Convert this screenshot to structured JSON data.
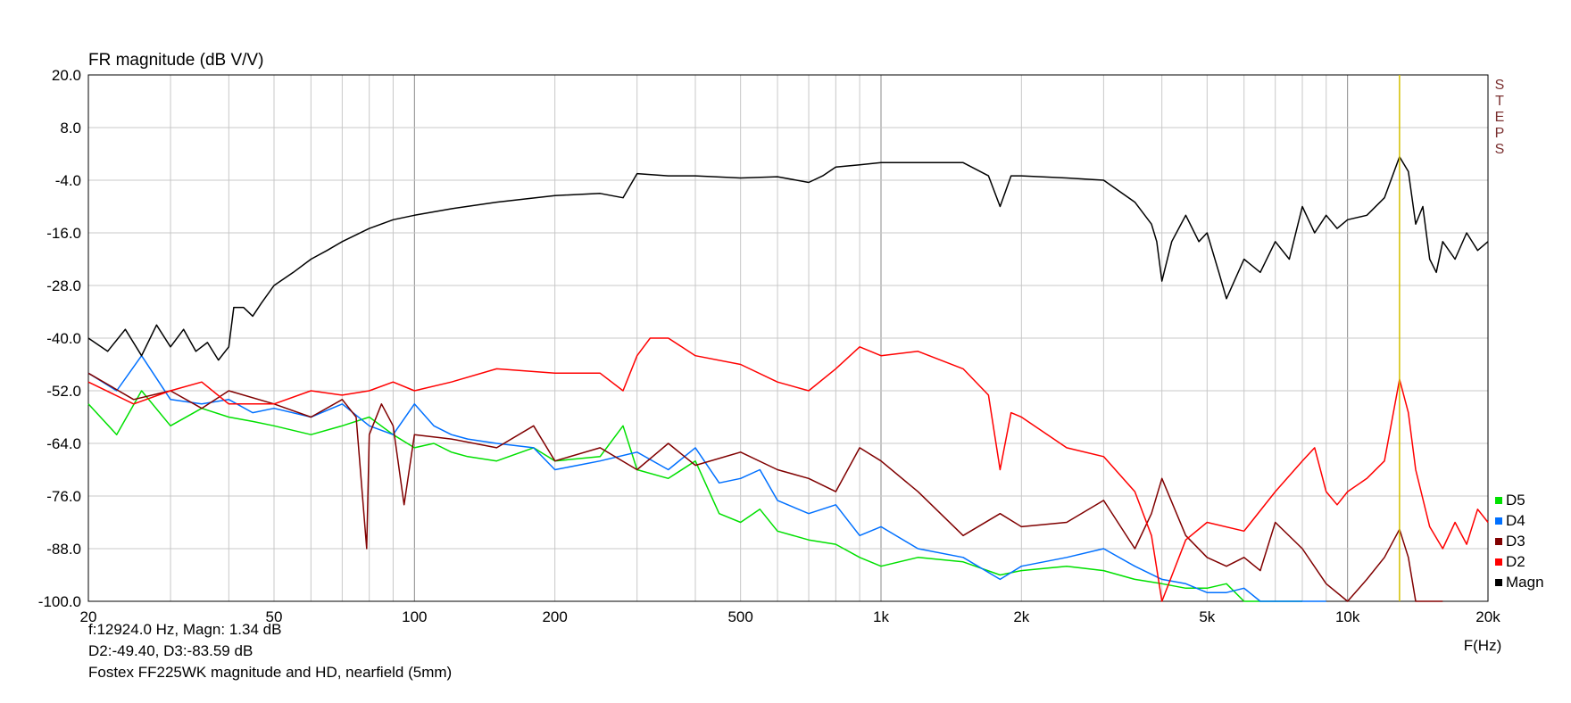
{
  "chart_data": {
    "type": "line",
    "title": "FR magnitude (dB V/V)",
    "xlabel": "F(Hz)",
    "x_scale": "log",
    "xlim": [
      20,
      20000
    ],
    "ylim": [
      -100,
      20
    ],
    "grid": true,
    "x_ticks": [
      "20",
      "50",
      "100",
      "200",
      "500",
      "1k",
      "2k",
      "5k",
      "10k",
      "20k"
    ],
    "y_ticks": [
      "20.0",
      "8.0",
      "-4.0",
      "-16.0",
      "-28.0",
      "-40.0",
      "-52.0",
      "-64.0",
      "-76.0",
      "-88.0",
      "-100.0"
    ],
    "side_label": "STEPS",
    "legend_position": "right-bottom",
    "legend": [
      {
        "name": "D5",
        "color": "#00e000"
      },
      {
        "name": "D4",
        "color": "#0070ff"
      },
      {
        "name": "D3",
        "color": "#800000"
      },
      {
        "name": "D2",
        "color": "#ff0000"
      },
      {
        "name": "Magn",
        "color": "#000000"
      }
    ],
    "cursor": {
      "x": 12924
    },
    "readout": [
      "f:12924.0 Hz, Magn: 1.34 dB",
      "D2:-49.40, D3:-83.59 dB"
    ],
    "caption": "Fostex FF225WK magnitude and HD, nearfield (5mm)",
    "series": [
      {
        "name": "Magn",
        "color": "#000000",
        "x": [
          20,
          22,
          24,
          26,
          28,
          30,
          32,
          34,
          36,
          38,
          40,
          41,
          43,
          45,
          47,
          50,
          55,
          60,
          65,
          70,
          80,
          90,
          100,
          120,
          150,
          200,
          250,
          280,
          300,
          350,
          400,
          500,
          600,
          700,
          750,
          800,
          900,
          1000,
          1200,
          1500,
          1700,
          1800,
          1900,
          2000,
          2500,
          3000,
          3500,
          3800,
          3900,
          4000,
          4200,
          4500,
          4800,
          5000,
          5300,
          5500,
          6000,
          6500,
          7000,
          7500,
          8000,
          8500,
          9000,
          9500,
          10000,
          11000,
          12000,
          12924,
          13500,
          14000,
          14500,
          15000,
          15500,
          16000,
          17000,
          18000,
          19000,
          20000
        ],
        "y": [
          -40,
          -43,
          -38,
          -44,
          -37,
          -42,
          -38,
          -43,
          -41,
          -45,
          -42,
          -33,
          -33,
          -35,
          -32,
          -28,
          -25,
          -22,
          -20,
          -18,
          -15,
          -13,
          -12,
          -10.5,
          -9,
          -7.5,
          -7,
          -8,
          -2.5,
          -3,
          -3,
          -3.5,
          -3.2,
          -4.5,
          -3,
          -1,
          -0.5,
          0,
          0,
          0,
          -3,
          -10,
          -3,
          -3,
          -3.5,
          -4,
          -9,
          -14,
          -18,
          -27,
          -18,
          -12,
          -18,
          -16,
          -25,
          -31,
          -22,
          -25,
          -18,
          -22,
          -10,
          -16,
          -12,
          -15,
          -13,
          -12,
          -8,
          1.34,
          -2,
          -14,
          -10,
          -22,
          -25,
          -18,
          -22,
          -16,
          -20,
          -18
        ]
      },
      {
        "name": "D2",
        "color": "#ff0000",
        "x": [
          20,
          25,
          30,
          35,
          40,
          50,
          60,
          70,
          80,
          90,
          100,
          120,
          150,
          200,
          250,
          280,
          300,
          320,
          350,
          400,
          500,
          600,
          700,
          800,
          900,
          1000,
          1200,
          1500,
          1700,
          1800,
          1900,
          2000,
          2500,
          3000,
          3500,
          3800,
          4000,
          4500,
          5000,
          6000,
          7000,
          8000,
          8500,
          9000,
          9500,
          10000,
          11000,
          12000,
          12924,
          13500,
          14000,
          15000,
          16000,
          17000,
          18000,
          19000,
          20000
        ],
        "y": [
          -50,
          -55,
          -52,
          -50,
          -55,
          -55,
          -52,
          -53,
          -52,
          -50,
          -52,
          -50,
          -47,
          -48,
          -48,
          -52,
          -44,
          -40,
          -40,
          -44,
          -46,
          -50,
          -52,
          -47,
          -42,
          -44,
          -43,
          -47,
          -53,
          -70,
          -57,
          -58,
          -65,
          -67,
          -75,
          -85,
          -100,
          -86,
          -82,
          -84,
          -75,
          -68,
          -65,
          -75,
          -78,
          -75,
          -72,
          -68,
          -49.4,
          -57,
          -70,
          -83,
          -88,
          -82,
          -87,
          -79,
          -82
        ]
      },
      {
        "name": "D3",
        "color": "#800000",
        "x": [
          20,
          25,
          30,
          35,
          40,
          50,
          60,
          70,
          75,
          79,
          80,
          85,
          90,
          95,
          100,
          120,
          150,
          180,
          200,
          250,
          300,
          350,
          400,
          500,
          600,
          700,
          800,
          900,
          1000,
          1200,
          1500,
          1800,
          2000,
          2500,
          3000,
          3500,
          3800,
          4000,
          4500,
          5000,
          5500,
          6000,
          6500,
          7000,
          8000,
          9000,
          10000,
          11000,
          12000,
          12924,
          13500,
          14000,
          15000,
          16000
        ],
        "y": [
          -48,
          -54,
          -52,
          -56,
          -52,
          -55,
          -58,
          -54,
          -58,
          -88,
          -62,
          -55,
          -60,
          -78,
          -62,
          -63,
          -65,
          -60,
          -68,
          -65,
          -70,
          -64,
          -69,
          -66,
          -70,
          -72,
          -75,
          -65,
          -68,
          -75,
          -85,
          -80,
          -83,
          -82,
          -77,
          -88,
          -80,
          -72,
          -85,
          -90,
          -92,
          -90,
          -93,
          -82,
          -88,
          -96,
          -100,
          -95,
          -90,
          -83.59,
          -90,
          -100,
          -100,
          -100
        ]
      },
      {
        "name": "D4",
        "color": "#0070ff",
        "x": [
          20,
          23,
          26,
          30,
          35,
          40,
          45,
          50,
          60,
          70,
          80,
          90,
          100,
          110,
          120,
          130,
          150,
          180,
          200,
          250,
          300,
          350,
          400,
          450,
          500,
          550,
          600,
          700,
          800,
          900,
          1000,
          1200,
          1500,
          1800,
          2000,
          2500,
          3000,
          3500,
          4000,
          4500,
          5000,
          5500,
          6000,
          6500,
          7000,
          8000,
          9000
        ],
        "y": [
          -48,
          -52,
          -44,
          -54,
          -55,
          -54,
          -57,
          -56,
          -58,
          -55,
          -60,
          -62,
          -55,
          -60,
          -62,
          -63,
          -64,
          -65,
          -70,
          -68,
          -66,
          -70,
          -65,
          -73,
          -72,
          -70,
          -77,
          -80,
          -78,
          -85,
          -83,
          -88,
          -90,
          -95,
          -92,
          -90,
          -88,
          -92,
          -95,
          -96,
          -98,
          -98,
          -97,
          -100,
          -100,
          -100,
          -100
        ]
      },
      {
        "name": "D5",
        "color": "#00e000",
        "x": [
          20,
          23,
          26,
          30,
          35,
          40,
          45,
          50,
          60,
          70,
          80,
          90,
          100,
          110,
          120,
          130,
          150,
          180,
          200,
          250,
          280,
          300,
          350,
          400,
          450,
          500,
          550,
          600,
          700,
          800,
          900,
          1000,
          1200,
          1500,
          1800,
          2000,
          2500,
          3000,
          3500,
          4000,
          4500,
          5000,
          5500,
          6000,
          6500,
          7000,
          8000
        ],
        "y": [
          -55,
          -62,
          -52,
          -60,
          -56,
          -58,
          -59,
          -60,
          -62,
          -60,
          -58,
          -62,
          -65,
          -64,
          -66,
          -67,
          -68,
          -65,
          -68,
          -67,
          -60,
          -70,
          -72,
          -68,
          -80,
          -82,
          -79,
          -84,
          -86,
          -87,
          -90,
          -92,
          -90,
          -91,
          -94,
          -93,
          -92,
          -93,
          -95,
          -96,
          -97,
          -97,
          -96,
          -100,
          -100,
          -100,
          -100
        ]
      }
    ]
  }
}
